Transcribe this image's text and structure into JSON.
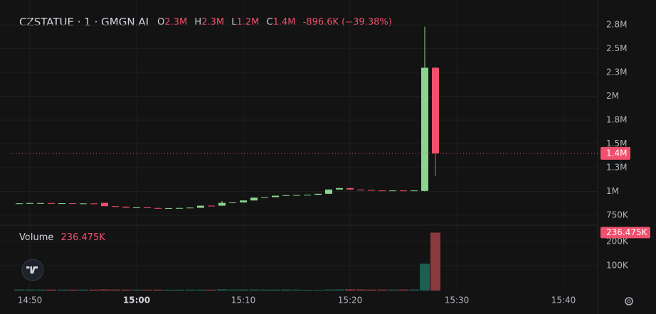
{
  "chart_data": {
    "type": "candlestick",
    "title": "CZSTATUE · 1 · GMGN.AI",
    "ohlc_legend": [
      {
        "key": "O",
        "value": "2.3M"
      },
      {
        "key": "H",
        "value": "2.3M"
      },
      {
        "key": "L",
        "value": "1.2M"
      },
      {
        "key": "C",
        "value": "1.4M"
      }
    ],
    "change": "-896.6K (−39.38%)",
    "x": [
      "14:49",
      "14:50",
      "14:51",
      "14:52",
      "14:53",
      "14:54",
      "14:55",
      "14:56",
      "14:57",
      "14:58",
      "14:59",
      "15:00",
      "15:01",
      "15:02",
      "15:03",
      "15:04",
      "15:05",
      "15:06",
      "15:07",
      "15:08",
      "15:09",
      "15:10",
      "15:11",
      "15:12",
      "15:13",
      "15:14",
      "15:15",
      "15:16",
      "15:17",
      "15:18",
      "15:19",
      "15:20",
      "15:21",
      "15:22",
      "15:23",
      "15:24",
      "15:25",
      "15:26",
      "15:27",
      "15:28"
    ],
    "open": [
      870000,
      875000,
      878000,
      878000,
      876000,
      876000,
      874000,
      874000,
      880000,
      845000,
      840000,
      832000,
      832000,
      826000,
      822000,
      825000,
      826000,
      828000,
      850000,
      850000,
      880000,
      885000,
      905000,
      935000,
      940000,
      955000,
      960000,
      962000,
      965000,
      975000,
      1020000,
      1035000,
      1020000,
      1015000,
      1010000,
      1008000,
      1010000,
      1008000,
      1005000,
      2300000
    ],
    "high": [
      876000,
      879000,
      879000,
      879000,
      877000,
      877000,
      875000,
      875000,
      881000,
      846000,
      841000,
      833000,
      833000,
      827000,
      826000,
      827000,
      831000,
      851000,
      851000,
      900000,
      886000,
      906000,
      936000,
      941000,
      956000,
      961000,
      963000,
      966000,
      976000,
      1022000,
      1037000,
      1036000,
      1021000,
      1016000,
      1011000,
      1011000,
      1011000,
      1011000,
      2730000,
      2310000
    ],
    "low": [
      869000,
      874000,
      877000,
      875000,
      875000,
      873000,
      873000,
      871000,
      844000,
      837000,
      829000,
      831000,
      827000,
      821000,
      821000,
      824000,
      825000,
      827000,
      847000,
      849000,
      879000,
      884000,
      904000,
      934000,
      939000,
      954000,
      959000,
      961000,
      964000,
      974000,
      1019000,
      1019000,
      1014000,
      1009000,
      1007000,
      1007000,
      1007000,
      1007000,
      1000000,
      1160000
    ],
    "close": [
      875000,
      878000,
      878000,
      876000,
      876000,
      874000,
      874000,
      872000,
      845000,
      838000,
      830000,
      832000,
      828000,
      822000,
      825000,
      826000,
      830000,
      850000,
      848000,
      880000,
      885000,
      905000,
      935000,
      940000,
      955000,
      960000,
      962000,
      965000,
      975000,
      1020000,
      1035000,
      1020000,
      1015000,
      1010000,
      1008000,
      1010000,
      1008000,
      1010000,
      2300000,
      1400000
    ],
    "volume": [
      1500,
      1200,
      1000,
      1100,
      1000,
      900,
      1000,
      800,
      1800,
      1200,
      1000,
      900,
      800,
      900,
      700,
      800,
      900,
      1000,
      800,
      2500,
      1200,
      1400,
      1300,
      1100,
      1000,
      1200,
      1000,
      0,
      0,
      1300,
      1800,
      2200,
      1600,
      1000,
      1200,
      1100,
      1300,
      1500,
      108000,
      236475
    ],
    "volume_title": "Volume",
    "volume_label": "236.475K",
    "last_price": {
      "value": 1400000,
      "label": "1.4M"
    },
    "ylim": [
      660000,
      2900000
    ],
    "yticks": [
      {
        "value": 750000,
        "label": "750K"
      },
      {
        "value": 1000000,
        "label": "1M"
      },
      {
        "value": 1250000,
        "label": "1.3M"
      },
      {
        "value": 1500000,
        "label": "1.5M"
      },
      {
        "value": 1750000,
        "label": "1.8M"
      },
      {
        "value": 2000000,
        "label": "2M"
      },
      {
        "value": 2250000,
        "label": "2.3M"
      },
      {
        "value": 2500000,
        "label": "2.5M"
      },
      {
        "value": 2750000,
        "label": "2.8M"
      }
    ],
    "y2lim": [
      0,
      270000
    ],
    "y2ticks": [
      {
        "value": 100000,
        "label": "100K"
      },
      {
        "value": 200000,
        "label": "200K"
      }
    ],
    "xticks": [
      "14:50",
      "15:00",
      "15:10",
      "15:20",
      "15:30",
      "15:40"
    ],
    "up_color": "#88d68f",
    "down_color": "#f0506e",
    "up_volume_color": "#1d5e52",
    "down_volume_color": "#8a3a3d",
    "grid": true
  }
}
